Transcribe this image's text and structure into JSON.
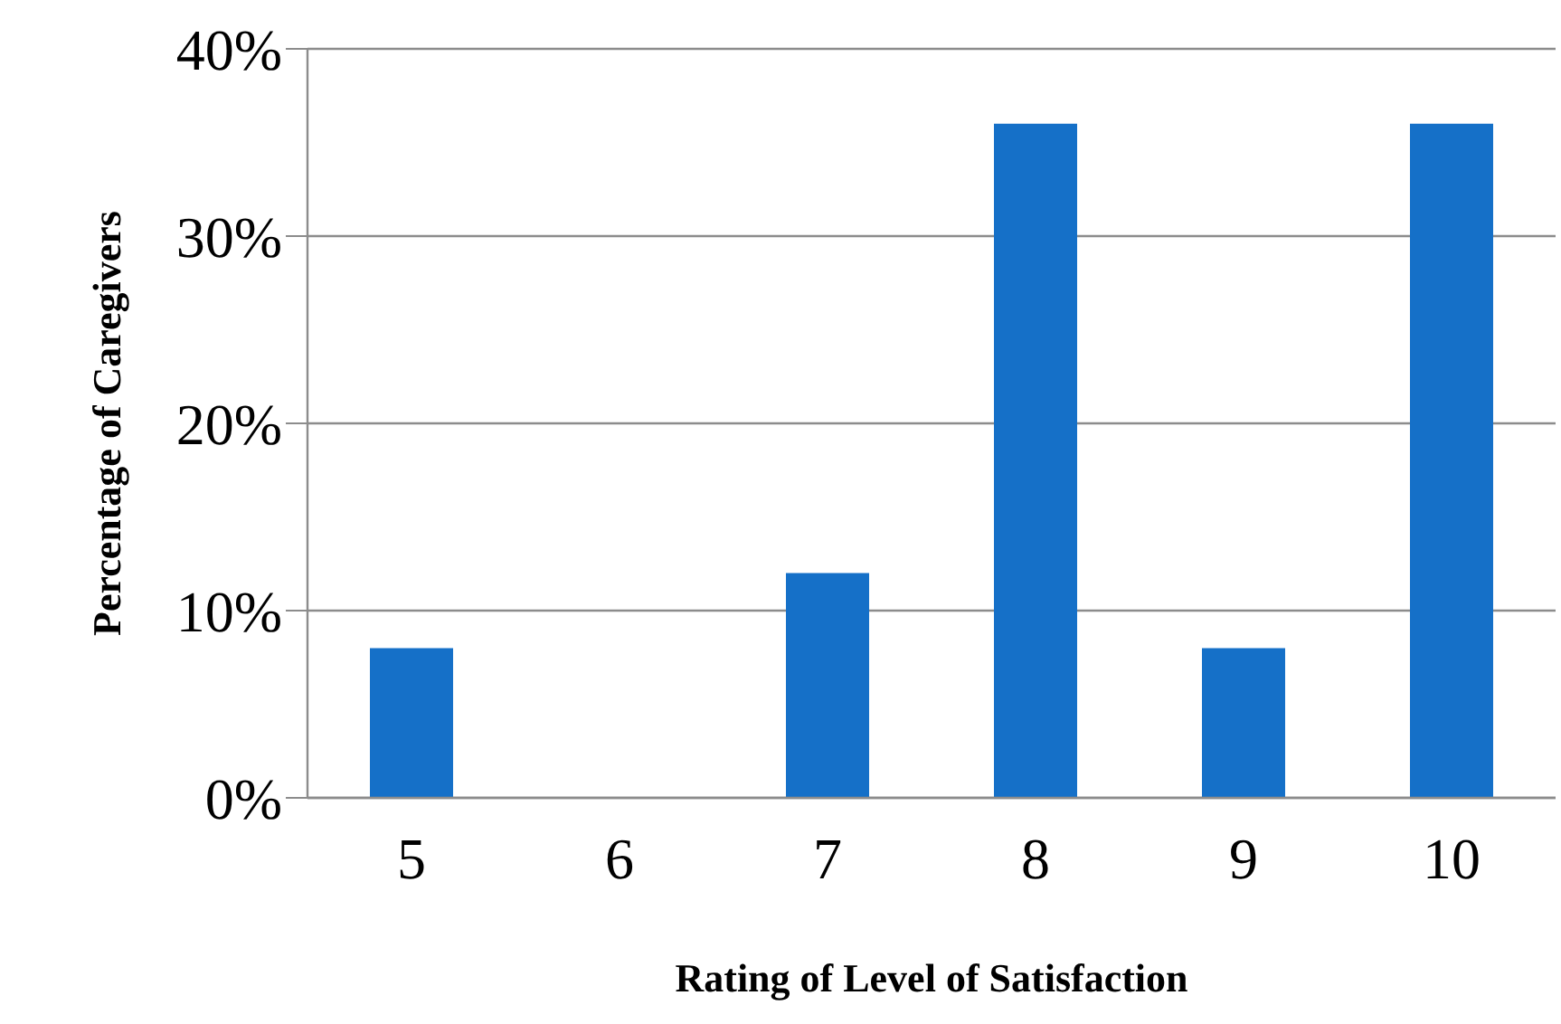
{
  "chart_data": {
    "type": "bar",
    "xlabel": "Rating of Level of Satisfaction",
    "ylabel": "Percentage of Caregivers",
    "categories": [
      "5",
      "6",
      "7",
      "8",
      "9",
      "10"
    ],
    "values": [
      8,
      0,
      12,
      36,
      8,
      36
    ],
    "color": "#1570c8",
    "ylim": [
      0,
      40
    ],
    "yticks": [
      {
        "value": 0,
        "label": "0%"
      },
      {
        "value": 10,
        "label": "10%"
      },
      {
        "value": 20,
        "label": "20%"
      },
      {
        "value": 30,
        "label": "30%"
      },
      {
        "value": 40,
        "label": "40%"
      }
    ],
    "grid": "y",
    "legend": false
  }
}
